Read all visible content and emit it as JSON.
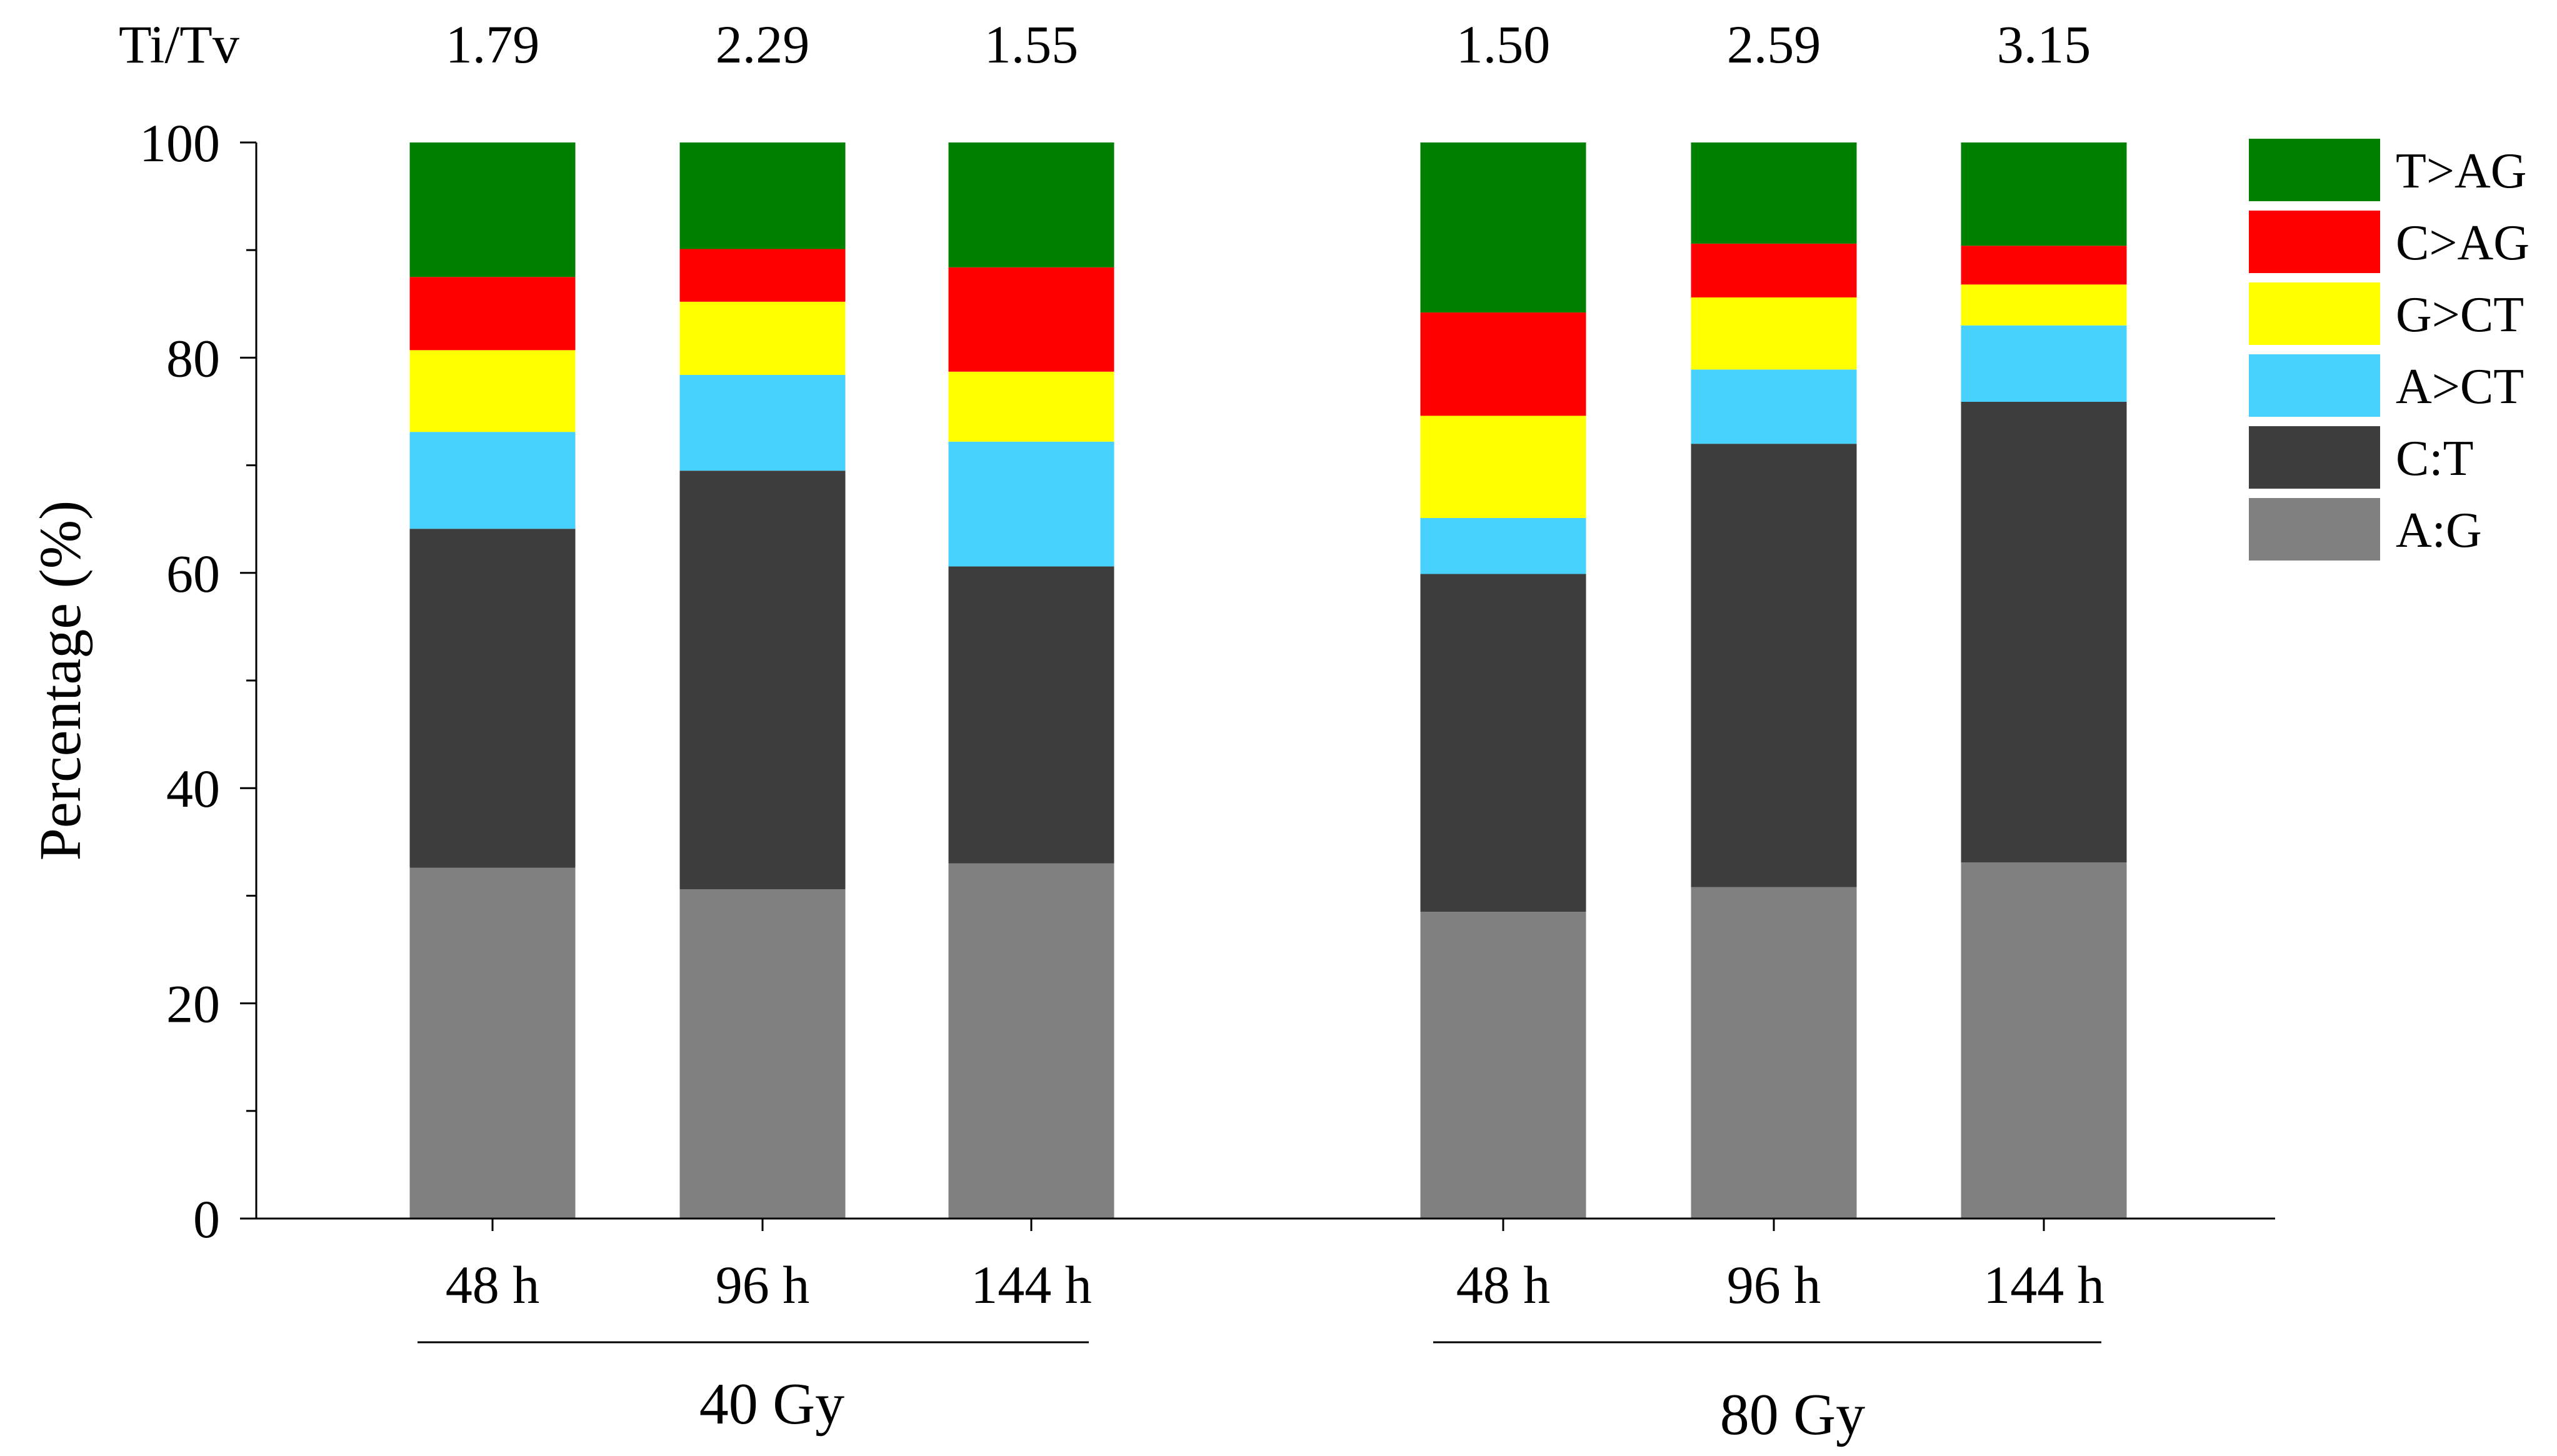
{
  "chart_data": {
    "type": "bar",
    "stacked": true,
    "ylabel": "Percentage (%)",
    "ylim": [
      0,
      100
    ],
    "yticks": [
      0,
      20,
      40,
      60,
      80,
      100
    ],
    "titv_label": "Ti/Tv",
    "groups": [
      {
        "name": "40 Gy",
        "bars": [
          {
            "label": "48 h",
            "titv": "1.79",
            "values": {
              "A:G": 32.6,
              "C:T": 31.5,
              "A>CT": 9.0,
              "G>CT": 7.6,
              "C>AG": 6.8,
              "T>AG": 12.5
            }
          },
          {
            "label": "96 h",
            "titv": "2.29",
            "values": {
              "A:G": 30.6,
              "C:T": 38.9,
              "A>CT": 8.9,
              "G>CT": 6.8,
              "C>AG": 4.9,
              "T>AG": 9.9
            }
          },
          {
            "label": "144 h",
            "titv": "1.55",
            "values": {
              "A:G": 33.0,
              "C:T": 27.6,
              "A>CT": 11.6,
              "G>CT": 6.5,
              "C>AG": 9.7,
              "T>AG": 11.6
            }
          }
        ]
      },
      {
        "name": "80 Gy",
        "bars": [
          {
            "label": "48 h",
            "titv": "1.50",
            "values": {
              "A:G": 28.5,
              "C:T": 31.4,
              "A>CT": 5.2,
              "G>CT": 9.5,
              "C>AG": 9.6,
              "T>AG": 15.8
            }
          },
          {
            "label": "96 h",
            "titv": "2.59",
            "values": {
              "A:G": 30.8,
              "C:T": 41.2,
              "A>CT": 6.9,
              "G>CT": 6.7,
              "C>AG": 5.0,
              "T>AG": 9.4
            }
          },
          {
            "label": "144 h",
            "titv": "3.15",
            "values": {
              "A:G": 33.1,
              "C:T": 42.8,
              "A>CT": 7.1,
              "G>CT": 3.8,
              "C>AG": 3.6,
              "T>AG": 9.6
            }
          }
        ]
      }
    ],
    "series": [
      {
        "name": "A:G",
        "color": "#808080"
      },
      {
        "name": "C:T",
        "color": "#3d3d3d"
      },
      {
        "name": "A>CT",
        "color": "#47d1ff"
      },
      {
        "name": "G>CT",
        "color": "#ffff00"
      },
      {
        "name": "C>AG",
        "color": "#ff0000"
      },
      {
        "name": "T>AG",
        "color": "#008000"
      }
    ],
    "legend_order": [
      "T>AG",
      "C>AG",
      "G>CT",
      "A>CT",
      "C:T",
      "A:G"
    ],
    "legend_position": "top-right"
  }
}
